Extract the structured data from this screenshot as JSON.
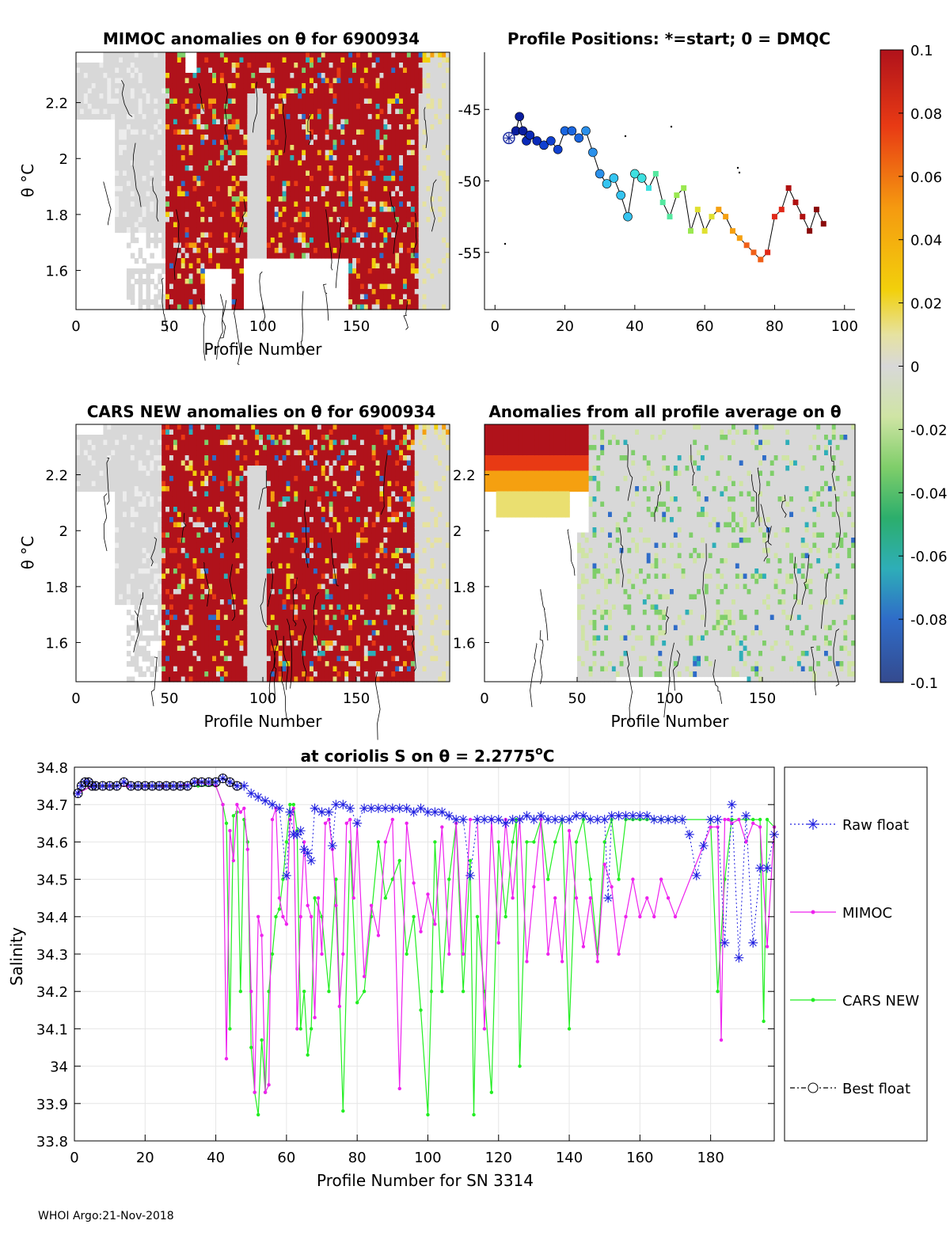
{
  "figure": {
    "footer": "WHOI Argo:21-Nov-2018",
    "colors": {
      "red": "#b0121b",
      "gray": "#d8d8d8",
      "raw_float": "#2020e0",
      "mimoc": "#ee22ee",
      "cars": "#22ee22",
      "axis": "#000000",
      "grid": "#e6e6e6"
    }
  },
  "colorbar": {
    "ticks": [
      "0.1",
      "0.08",
      "0.06",
      "0.04",
      "0.02",
      "0",
      "-0.02",
      "-0.04",
      "-0.06",
      "-0.08",
      "-0.1"
    ],
    "range": [
      -0.1,
      0.1
    ]
  },
  "panels": {
    "mimoc": {
      "title": "MIMOC anomalies on θ  for 6900934",
      "ylabel": "θ °C",
      "xlabel": "Profile Number",
      "xticks": [
        "0",
        "50",
        "100",
        "150"
      ],
      "yticks": [
        "2.2",
        "2",
        "1.8",
        "1.6"
      ]
    },
    "positions": {
      "title": "Profile Positions: *=start; 0 = DMQC",
      "xticks": [
        "0",
        "20",
        "40",
        "60",
        "80",
        "100"
      ],
      "yticks": [
        "-45",
        "-50",
        "-55"
      ]
    },
    "cars": {
      "title": "CARS NEW anomalies on θ for 6900934",
      "ylabel": "θ °C",
      "xlabel": "Profile Number",
      "xticks": [
        "0",
        "50",
        "100",
        "150"
      ],
      "yticks": [
        "2.2",
        "2",
        "1.8",
        "1.6"
      ]
    },
    "average": {
      "title": "Anomalies from all profile average on θ",
      "xlabel": "Profile Number",
      "xticks": [
        "0",
        "50",
        "100",
        "150"
      ],
      "yticks": [
        "2.2",
        "2",
        "1.8",
        "1.6"
      ]
    }
  },
  "chart_data": [
    {
      "type": "heatmap",
      "title": "MIMOC anomalies on θ  for 6900934",
      "xlabel": "Profile Number",
      "ylabel": "θ °C",
      "xlim": [
        0,
        200
      ],
      "ylim": [
        1.46,
        2.38
      ],
      "dominant": "positive anomalies (≥0.1) for profiles ~45-185"
    },
    {
      "type": "scatter",
      "title": "Profile Positions: *=start; 0 = DMQC",
      "xlim": [
        -3,
        103
      ],
      "ylim": [
        -59,
        -41
      ],
      "x": [
        4,
        6,
        7,
        8,
        9,
        10,
        12,
        14,
        16,
        18,
        20,
        22,
        24,
        26,
        28,
        30,
        32,
        34,
        36,
        38,
        40,
        42,
        44,
        46,
        48,
        50,
        52,
        54,
        56,
        58,
        60,
        62,
        64,
        66,
        68,
        70,
        72,
        74,
        76,
        78,
        80,
        82,
        84,
        86,
        88,
        90,
        92,
        94
      ],
      "y": [
        -47,
        -46.5,
        -45.5,
        -46.5,
        -47.2,
        -46.8,
        -47.2,
        -47.5,
        -47.2,
        -47.8,
        -46.5,
        -46.5,
        -47,
        -46.5,
        -48,
        -49.5,
        -50.2,
        -49.8,
        -51,
        -52.5,
        -49.5,
        -49.8,
        -50.5,
        -49.5,
        -51.5,
        -52.5,
        -51,
        -50.5,
        -53.5,
        -52,
        -53.5,
        -52.5,
        -52,
        -52.5,
        -53.5,
        -54,
        -54.5,
        -55,
        -55.5,
        -55,
        -52.5,
        -52,
        -50.5,
        -51.5,
        -52.5,
        -53.5,
        -52,
        -53
      ],
      "start": [
        4,
        -47
      ]
    },
    {
      "type": "heatmap",
      "title": "CARS NEW anomalies on θ for 6900934",
      "xlabel": "Profile Number",
      "ylabel": "θ °C",
      "xlim": [
        0,
        200
      ],
      "ylim": [
        1.46,
        2.38
      ],
      "dominant": "positive anomalies (≥0.1) for profiles ~45-180"
    },
    {
      "type": "heatmap",
      "title": "Anomalies from all profile average on θ",
      "xlabel": "Profile Number",
      "xlim": [
        0,
        200
      ],
      "ylim": [
        1.46,
        2.38
      ],
      "dominant": "positive anomalies for profiles 0-55 above θ≈2.1, near zero elsewhere"
    },
    {
      "type": "line",
      "title": "at coriolis S on θ = 2.2775°C",
      "xlabel": "Profile Number for SN 3314",
      "ylabel": "Salinity",
      "xlim": [
        0,
        198
      ],
      "ylim": [
        33.8,
        34.8
      ],
      "xticks": [
        "0",
        "20",
        "40",
        "60",
        "80",
        "100",
        "120",
        "140",
        "160",
        "180"
      ],
      "yticks": [
        "34.8",
        "34.7",
        "34.6",
        "34.5",
        "34.4",
        "34.3",
        "34.2",
        "34.1",
        "34",
        "33.9",
        "33.8"
      ],
      "legend": [
        "Raw float",
        "MIMOC",
        "CARS NEW",
        "Best float"
      ],
      "series": [
        {
          "name": "Raw float",
          "x": [
            1,
            2,
            3,
            4,
            5,
            6,
            8,
            10,
            12,
            14,
            16,
            18,
            20,
            22,
            24,
            26,
            28,
            30,
            32,
            34,
            36,
            38,
            40,
            42,
            44,
            46,
            48,
            50,
            52,
            54,
            56,
            58,
            60,
            61,
            62,
            63,
            64,
            65,
            66,
            67,
            68,
            70,
            72,
            73,
            74,
            76,
            78,
            80,
            82,
            84,
            86,
            88,
            90,
            92,
            94,
            96,
            98,
            100,
            102,
            104,
            106,
            108,
            110,
            112,
            114,
            116,
            118,
            120,
            122,
            124,
            126,
            128,
            130,
            132,
            134,
            136,
            138,
            140,
            142,
            144,
            146,
            148,
            150,
            151,
            152,
            154,
            156,
            158,
            160,
            162,
            164,
            166,
            168,
            170,
            172,
            174,
            176,
            178,
            180,
            182,
            184,
            186,
            188,
            190,
            192,
            194,
            196,
            198
          ],
          "values": [
            34.73,
            34.75,
            34.76,
            34.76,
            34.75,
            34.75,
            34.75,
            34.75,
            34.75,
            34.76,
            34.75,
            34.75,
            34.75,
            34.75,
            34.75,
            34.75,
            34.75,
            34.75,
            34.75,
            34.76,
            34.76,
            34.76,
            34.76,
            34.77,
            34.76,
            34.75,
            34.75,
            34.73,
            34.72,
            34.71,
            34.7,
            34.69,
            34.51,
            34.68,
            34.62,
            34.62,
            34.63,
            34.58,
            34.57,
            34.55,
            34.69,
            34.68,
            34.68,
            34.59,
            34.7,
            34.7,
            34.69,
            34.65,
            34.69,
            34.69,
            34.69,
            34.69,
            34.69,
            34.69,
            34.69,
            34.68,
            34.69,
            34.68,
            34.68,
            34.68,
            34.67,
            34.66,
            34.66,
            34.51,
            34.66,
            34.66,
            34.66,
            34.66,
            34.65,
            34.66,
            34.66,
            34.67,
            34.66,
            34.67,
            34.66,
            34.66,
            34.66,
            34.66,
            34.67,
            34.67,
            34.66,
            34.66,
            34.66,
            34.45,
            34.67,
            34.67,
            34.67,
            34.67,
            34.67,
            34.67,
            34.66,
            34.66,
            34.66,
            34.66,
            34.66,
            34.62,
            34.51,
            34.59,
            34.66,
            34.66,
            34.33,
            34.7,
            34.29,
            34.67,
            34.33,
            34.53,
            34.53,
            34.62
          ]
        },
        {
          "name": "MIMOC",
          "x": [
            1,
            5,
            10,
            15,
            20,
            25,
            30,
            35,
            40,
            42,
            43,
            44,
            45,
            46,
            47,
            48,
            49,
            50,
            51,
            52,
            53,
            54,
            55,
            56,
            57,
            58,
            59,
            60,
            61,
            62,
            63,
            64,
            65,
            66,
            67,
            68,
            69,
            70,
            71,
            72,
            73,
            74,
            75,
            76,
            77,
            78,
            79,
            80,
            82,
            84,
            86,
            88,
            90,
            92,
            94,
            96,
            98,
            100,
            102,
            104,
            106,
            108,
            110,
            112,
            114,
            116,
            118,
            120,
            122,
            124,
            126,
            128,
            130,
            132,
            134,
            136,
            138,
            140,
            142,
            144,
            146,
            148,
            150,
            152,
            154,
            156,
            158,
            160,
            162,
            164,
            166,
            168,
            170,
            180,
            182,
            183,
            184,
            185,
            186,
            188,
            190,
            192,
            194,
            196,
            198
          ],
          "values": [
            34.73,
            34.75,
            34.75,
            34.75,
            34.75,
            34.75,
            34.75,
            34.76,
            34.75,
            34.7,
            34.02,
            34.63,
            34.55,
            34.7,
            34.68,
            34.69,
            34.58,
            34.2,
            33.93,
            34.4,
            34.35,
            33.93,
            33.95,
            34.66,
            34.69,
            34.45,
            34.4,
            34.38,
            34.66,
            34.69,
            34.1,
            34.4,
            34.6,
            34.43,
            34.4,
            34.13,
            34.45,
            34.3,
            34.65,
            34.66,
            34.58,
            34.43,
            34.16,
            34.3,
            34.65,
            34.66,
            34.45,
            34.65,
            34.24,
            34.43,
            34.35,
            34.6,
            34.66,
            33.94,
            34.65,
            34.49,
            34.36,
            34.46,
            34.38,
            34.64,
            34.3,
            34.65,
            34.3,
            34.66,
            34.66,
            34.1,
            34.66,
            34.33,
            34.66,
            34.45,
            34.66,
            34.28,
            34.48,
            34.66,
            34.3,
            34.45,
            34.28,
            34.63,
            34.45,
            34.32,
            34.45,
            34.28,
            34.54,
            34.48,
            34.3,
            34.4,
            34.5,
            34.4,
            34.45,
            34.4,
            34.5,
            34.45,
            34.4,
            34.64,
            34.64,
            34.07,
            34.66,
            34.66,
            34.65,
            34.66,
            34.6,
            34.65,
            34.64,
            34.32,
            34.64
          ]
        },
        {
          "name": "CARS NEW",
          "x": [
            1,
            5,
            10,
            15,
            20,
            25,
            30,
            35,
            40,
            42,
            43,
            44,
            45,
            46,
            47,
            48,
            49,
            50,
            51,
            52,
            53,
            54,
            55,
            56,
            57,
            58,
            59,
            60,
            61,
            62,
            63,
            64,
            65,
            66,
            67,
            68,
            70,
            72,
            74,
            76,
            78,
            80,
            82,
            84,
            86,
            88,
            90,
            92,
            94,
            96,
            98,
            100,
            101,
            102,
            104,
            106,
            108,
            110,
            112,
            113,
            114,
            116,
            118,
            120,
            122,
            124,
            125,
            126,
            128,
            130,
            132,
            134,
            136,
            138,
            140,
            142,
            144,
            146,
            148,
            150,
            152,
            154,
            156,
            158,
            160,
            162,
            164,
            166,
            168,
            170,
            180,
            182,
            184,
            186,
            188,
            190,
            192,
            194,
            195,
            196,
            198
          ],
          "values": [
            34.73,
            34.75,
            34.75,
            34.75,
            34.75,
            34.75,
            34.75,
            34.75,
            34.75,
            34.7,
            34.65,
            34.1,
            34.67,
            34.68,
            34.2,
            34.66,
            34.6,
            34.05,
            33.93,
            33.87,
            34.07,
            33.93,
            34.2,
            34.3,
            34.4,
            34.42,
            34.5,
            34.6,
            34.7,
            34.7,
            34.63,
            34.1,
            34.2,
            34.03,
            34.1,
            34.45,
            34.4,
            34.2,
            34.5,
            33.88,
            34.6,
            34.17,
            34.2,
            34.4,
            34.6,
            34.45,
            34.5,
            34.55,
            34.3,
            34.4,
            34.15,
            33.87,
            34.2,
            34.6,
            34.2,
            34.5,
            34.65,
            34.2,
            34.55,
            33.87,
            34.4,
            34.2,
            33.93,
            34.6,
            34.4,
            34.6,
            34.66,
            34.0,
            34.6,
            34.6,
            34.66,
            34.5,
            34.6,
            34.66,
            34.1,
            34.6,
            34.66,
            34.5,
            34.3,
            34.6,
            34.66,
            34.5,
            34.66,
            34.66,
            34.66,
            34.66,
            34.66,
            34.66,
            34.66,
            34.66,
            34.66,
            34.2,
            34.5,
            34.66,
            34.66,
            34.66,
            34.66,
            34.66,
            34.12,
            34.66,
            34.64
          ]
        },
        {
          "name": "Best float",
          "x": [
            1,
            2,
            3,
            4,
            5,
            6,
            8,
            10,
            12,
            14,
            16,
            18,
            20,
            22,
            24,
            26,
            28,
            30,
            32,
            34,
            36,
            38,
            40,
            42,
            44,
            46
          ],
          "values": [
            34.73,
            34.75,
            34.76,
            34.76,
            34.75,
            34.75,
            34.75,
            34.75,
            34.75,
            34.76,
            34.75,
            34.75,
            34.75,
            34.75,
            34.75,
            34.75,
            34.75,
            34.75,
            34.75,
            34.76,
            34.76,
            34.76,
            34.76,
            34.77,
            34.76,
            34.75
          ]
        }
      ]
    }
  ]
}
